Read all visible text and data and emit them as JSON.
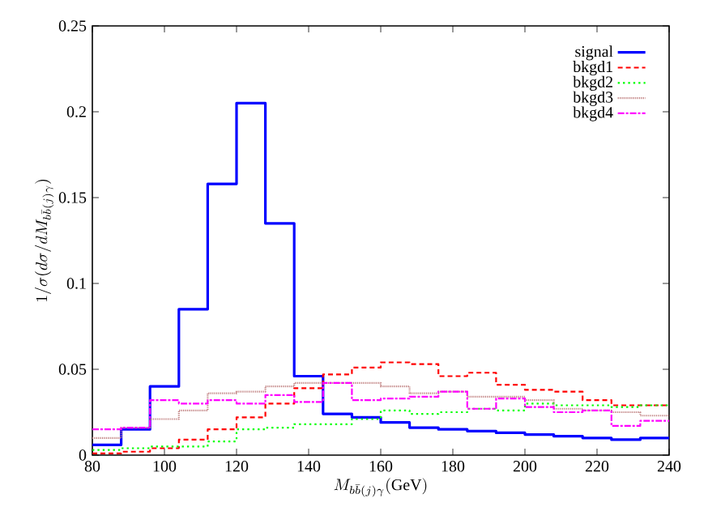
{
  "chart_data": {
    "type": "histogram",
    "xlabel": "M_{b\\bar{b}(j)\\gamma}(\\mathrm{GeV})",
    "ylabel": "1/\\sigma(d\\sigma/dM_{b\\bar{b}(j)\\gamma})",
    "bins": [
      80,
      88,
      96,
      104,
      112,
      120,
      128,
      136,
      144,
      152,
      160,
      168,
      176,
      184,
      192,
      200,
      208,
      216,
      224,
      232,
      240
    ],
    "series": [
      {
        "name": "signal",
        "color": "#0000ff",
        "line_style": "solid",
        "values": [
          0.006,
          0.015,
          0.04,
          0.085,
          0.158,
          0.205,
          0.135,
          0.046,
          0.024,
          0.022,
          0.019,
          0.016,
          0.015,
          0.014,
          0.013,
          0.012,
          0.011,
          0.01,
          0.009,
          0.01
        ]
      },
      {
        "name": "bkgd1",
        "color": "#ff0000",
        "line_style": "dashed",
        "values": [
          0.001,
          0.002,
          0.004,
          0.009,
          0.015,
          0.022,
          0.03,
          0.039,
          0.047,
          0.051,
          0.054,
          0.053,
          0.046,
          0.048,
          0.041,
          0.038,
          0.037,
          0.032,
          0.029,
          0.029
        ]
      },
      {
        "name": "bkgd2",
        "color": "#00ff00",
        "line_style": "dotted",
        "values": [
          0.003,
          0.004,
          0.005,
          0.005,
          0.008,
          0.015,
          0.016,
          0.018,
          0.018,
          0.021,
          0.026,
          0.024,
          0.025,
          0.027,
          0.026,
          0.03,
          0.029,
          0.029,
          0.028,
          0.029
        ]
      },
      {
        "name": "bkgd3",
        "color": "#c08080",
        "line_style": "densely dotted",
        "values": [
          0.01,
          0.016,
          0.021,
          0.026,
          0.036,
          0.037,
          0.04,
          0.042,
          0.042,
          0.042,
          0.04,
          0.036,
          0.037,
          0.034,
          0.034,
          0.032,
          0.027,
          0.026,
          0.025,
          0.023
        ]
      },
      {
        "name": "bkgd4",
        "color": "#ff00ff",
        "line_style": "dashdot",
        "values": [
          0.015,
          0.016,
          0.032,
          0.03,
          0.032,
          0.03,
          0.035,
          0.031,
          0.042,
          0.032,
          0.033,
          0.034,
          0.037,
          0.027,
          0.033,
          0.028,
          0.025,
          0.026,
          0.017,
          0.02
        ]
      }
    ],
    "xlim": [
      80,
      240
    ],
    "ylim": [
      0,
      0.25
    ],
    "xticks": [
      80,
      100,
      120,
      140,
      160,
      180,
      200,
      220,
      240
    ],
    "yticks": [
      0,
      0.05,
      0.1,
      0.15,
      0.2,
      0.25
    ],
    "legend": "top right"
  }
}
